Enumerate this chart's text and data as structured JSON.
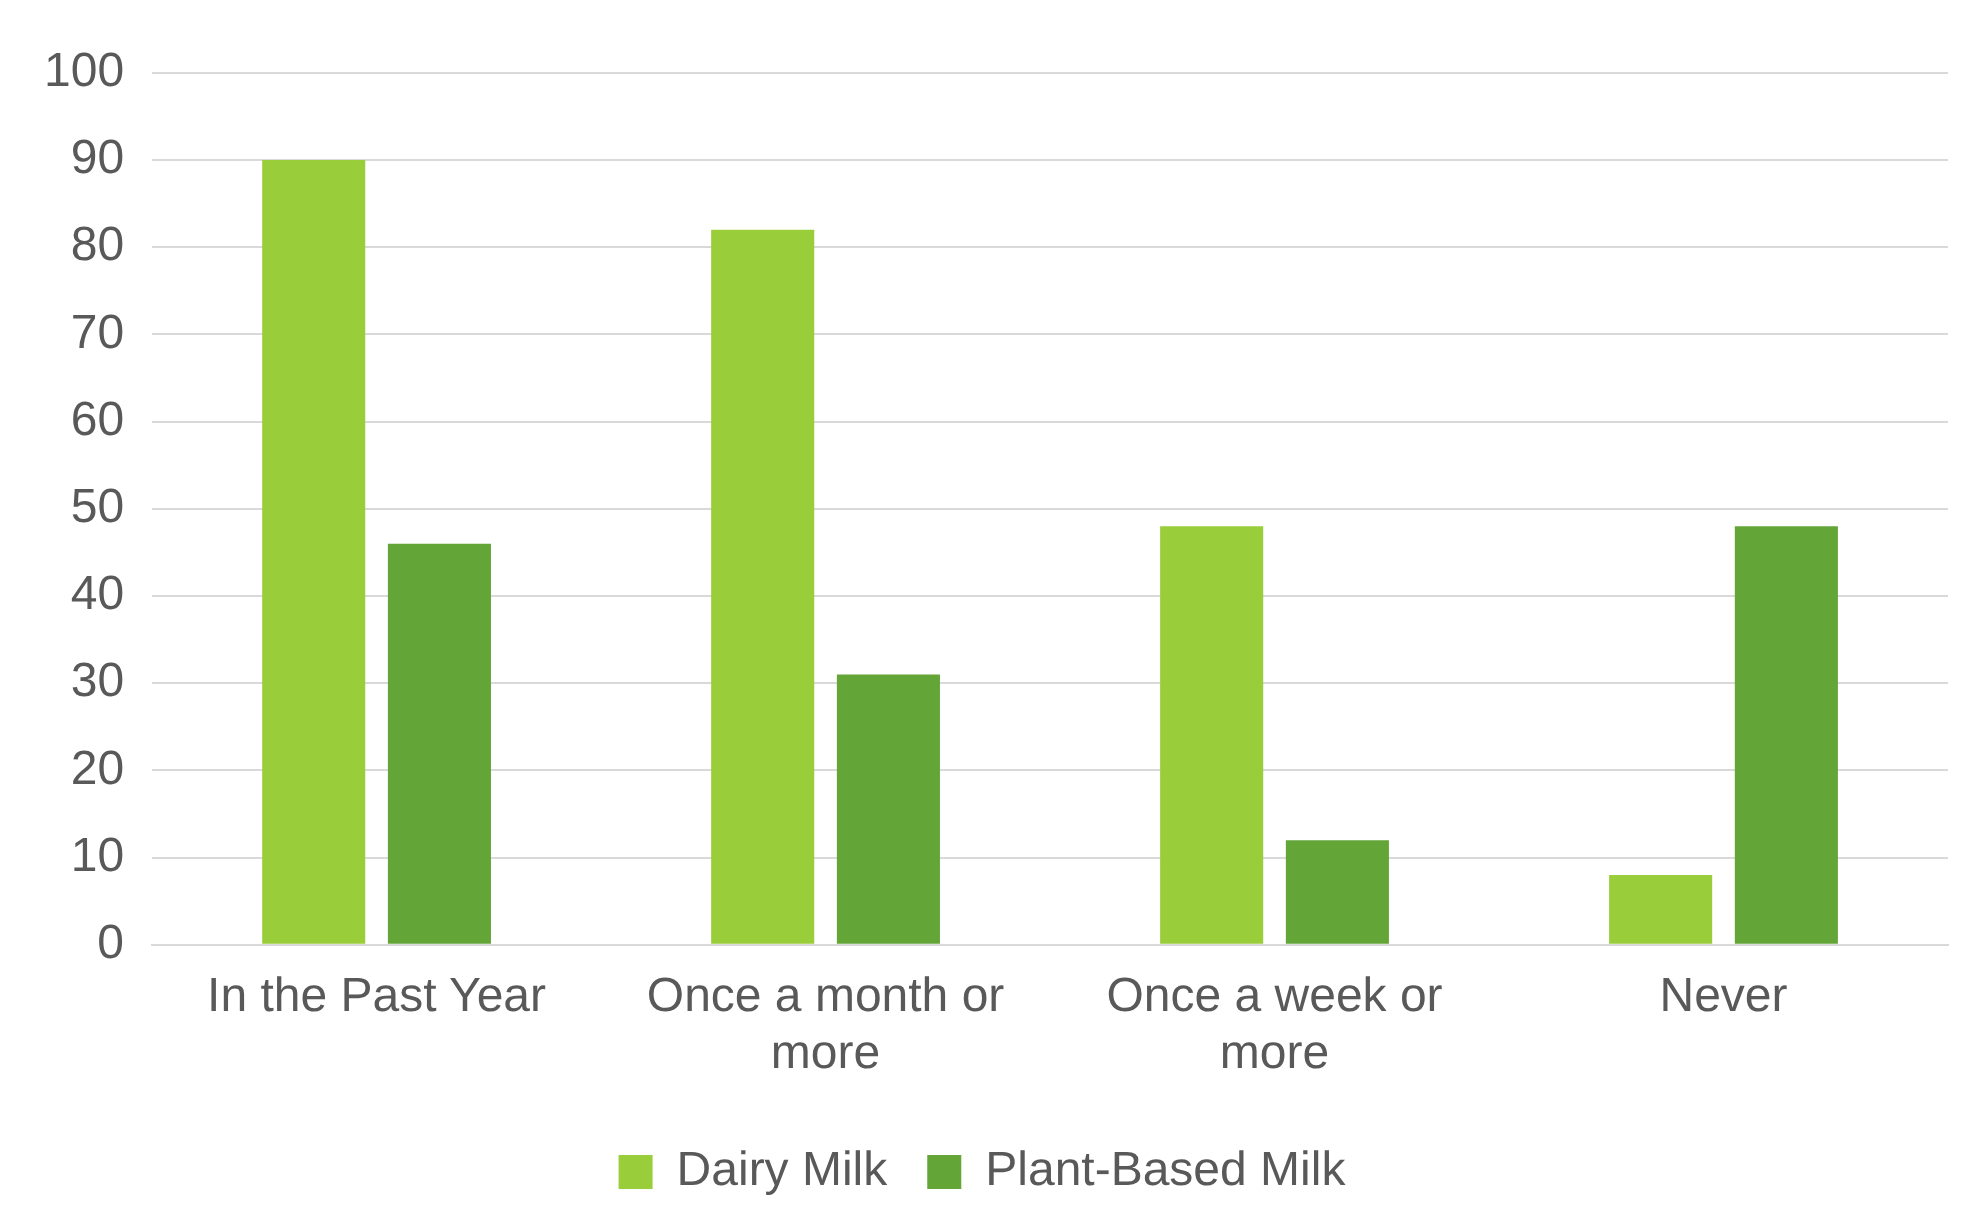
{
  "chart_data": {
    "type": "bar",
    "categories": [
      "In the Past Year",
      "Once a month or more",
      "Once a week or more",
      "Never"
    ],
    "series": [
      {
        "name": "Dairy Milk",
        "color": "#9acd3a",
        "values": [
          90,
          82,
          48,
          8
        ]
      },
      {
        "name": "Plant-Based Milk",
        "color": "#63a537",
        "values": [
          46,
          31,
          12,
          48
        ]
      }
    ],
    "ylim": [
      0,
      100
    ],
    "yticks": [
      0,
      10,
      20,
      30,
      40,
      50,
      60,
      70,
      80,
      90,
      100
    ],
    "grid": "y",
    "legend": "bottom"
  }
}
